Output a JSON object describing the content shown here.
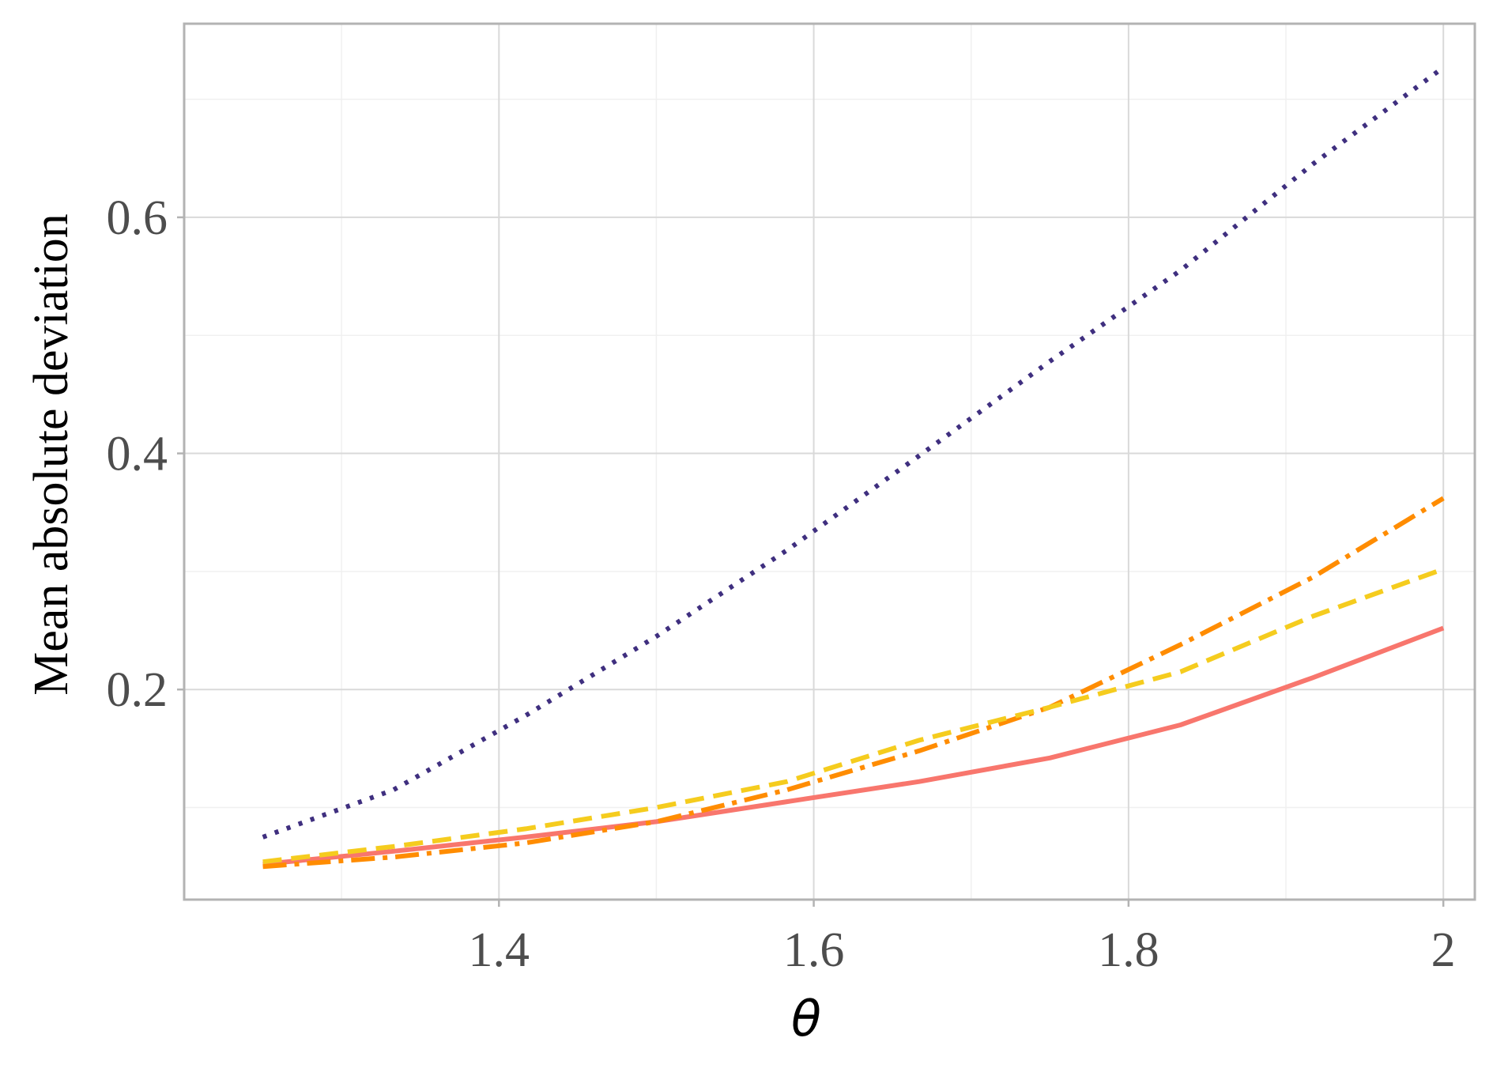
{
  "chart_data": {
    "type": "line",
    "title": "",
    "xlabel": "θ",
    "ylabel": "Mean absolute deviation",
    "xlim": [
      1.2,
      2.02
    ],
    "ylim": [
      0.022,
      0.764
    ],
    "x_ticks": [
      {
        "value": 1.4,
        "label": "1.4"
      },
      {
        "value": 1.6,
        "label": "1.6"
      },
      {
        "value": 1.8,
        "label": "1.8"
      },
      {
        "value": 2.0,
        "label": "2"
      }
    ],
    "y_ticks": [
      {
        "value": 0.2,
        "label": "0.2"
      },
      {
        "value": 0.4,
        "label": "0.4"
      },
      {
        "value": 0.6,
        "label": "0.6"
      }
    ],
    "x_minor": [
      1.3,
      1.5,
      1.7,
      1.9
    ],
    "y_minor": [
      0.1,
      0.3,
      0.5,
      0.7
    ],
    "grid": true,
    "legend": "none",
    "colors": {
      "panel_border": "#b3b3b3",
      "grid_major": "#d9d9d9",
      "grid_minor": "#f0f0f0"
    },
    "series": [
      {
        "color": "#3f2f7f",
        "style": "dotted",
        "x": [
          1.25,
          1.333,
          1.417,
          1.5,
          1.583,
          1.667,
          1.75,
          1.833,
          1.917,
          2.0
        ],
        "y": [
          0.075,
          0.115,
          0.178,
          0.245,
          0.318,
          0.398,
          0.478,
          0.555,
          0.645,
          0.727
        ]
      },
      {
        "color": "#f8766d",
        "style": "solid",
        "x": [
          1.25,
          1.333,
          1.417,
          1.5,
          1.583,
          1.667,
          1.75,
          1.833,
          1.917,
          2.0
        ],
        "y": [
          0.052,
          0.063,
          0.075,
          0.088,
          0.105,
          0.122,
          0.142,
          0.17,
          0.21,
          0.252
        ]
      },
      {
        "color": "#ff8c00",
        "style": "dashdot",
        "x": [
          1.25,
          1.333,
          1.417,
          1.5,
          1.583,
          1.667,
          1.75,
          1.833,
          1.917,
          2.0
        ],
        "y": [
          0.05,
          0.058,
          0.07,
          0.088,
          0.115,
          0.148,
          0.185,
          0.238,
          0.295,
          0.362
        ]
      },
      {
        "color": "#f5cc1e",
        "style": "dashed",
        "x": [
          1.25,
          1.333,
          1.417,
          1.5,
          1.583,
          1.667,
          1.75,
          1.833,
          1.917,
          2.0
        ],
        "y": [
          0.054,
          0.067,
          0.082,
          0.1,
          0.122,
          0.157,
          0.185,
          0.215,
          0.262,
          0.302
        ]
      }
    ]
  }
}
